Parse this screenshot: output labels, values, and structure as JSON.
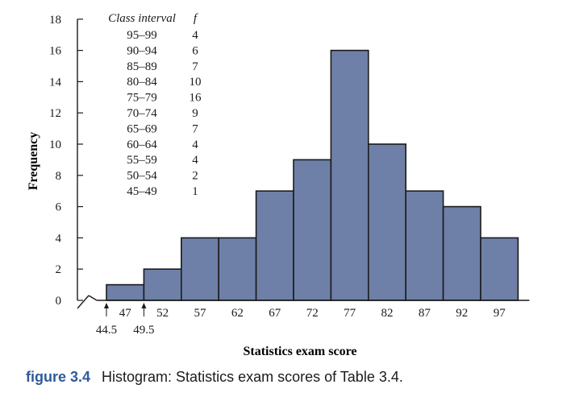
{
  "chart_data": {
    "type": "bar",
    "subtype": "histogram",
    "categories": [
      "47",
      "52",
      "57",
      "62",
      "67",
      "72",
      "77",
      "82",
      "87",
      "92",
      "97"
    ],
    "values": [
      1,
      2,
      4,
      4,
      7,
      9,
      16,
      10,
      7,
      6,
      4
    ],
    "bin_width": 5,
    "bin_start": 44.5,
    "xlabel": "Statistics exam score",
    "ylabel": "Frequency",
    "ylim": [
      0,
      18
    ],
    "yticks": [
      "0",
      "2",
      "4",
      "6",
      "8",
      "10",
      "12",
      "14",
      "16",
      "18"
    ],
    "boundary_labels": [
      "44.5",
      "49.5"
    ],
    "grid": false,
    "bar_color": "#6e80a8",
    "bar_edge_color": "#1a1a1a",
    "axis_break": true,
    "table": {
      "header_interval": "Class interval",
      "header_f": "f",
      "rows": [
        {
          "interval": "95–99",
          "f": "4"
        },
        {
          "interval": "90–94",
          "f": "6"
        },
        {
          "interval": "85–89",
          "f": "7"
        },
        {
          "interval": "80–84",
          "f": "10"
        },
        {
          "interval": "75–79",
          "f": "16"
        },
        {
          "interval": "70–74",
          "f": "9"
        },
        {
          "interval": "65–69",
          "f": "7"
        },
        {
          "interval": "60–64",
          "f": "4"
        },
        {
          "interval": "55–59",
          "f": "4"
        },
        {
          "interval": "50–54",
          "f": "2"
        },
        {
          "interval": "45–49",
          "f": "1"
        }
      ]
    }
  },
  "caption": {
    "label": "figure 3.4",
    "text": "Histogram: Statistics exam scores of Table 3.4."
  }
}
